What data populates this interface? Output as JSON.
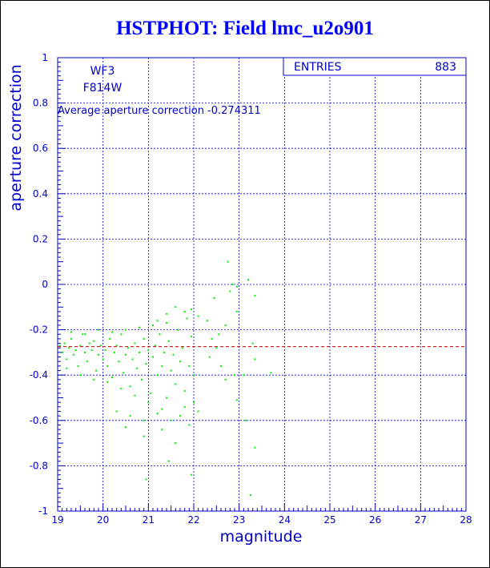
{
  "chart_data": {
    "type": "scatter",
    "title": "HSTPHOT: Field lmc_u2o901",
    "xlabel": "magnitude",
    "ylabel": "aperture correction",
    "xlim": [
      19,
      28
    ],
    "ylim": [
      -1,
      1
    ],
    "xticks": [
      "19",
      "20",
      "21",
      "22",
      "23",
      "24",
      "25",
      "26",
      "27",
      "28"
    ],
    "yticks": [
      "-1",
      "-0.8",
      "-0.6",
      "-0.4",
      "-0.2",
      "0",
      "0.2",
      "0.4",
      "0.6",
      "0.8",
      "1"
    ],
    "grid": true,
    "stats_box": {
      "label": "ENTRIES",
      "value": "883"
    },
    "annotations": {
      "camera": "WF3",
      "filter": "F814W",
      "average_text": "Average aperture correction -0.274311"
    },
    "average_line": {
      "y": -0.274311,
      "color": "#cc0000"
    },
    "point_color": "#00ee00",
    "axis_color": "#0000cc",
    "series": [
      {
        "points": [
          [
            19.05,
            -0.27
          ],
          [
            19.1,
            -0.3
          ],
          [
            19.15,
            -0.26
          ],
          [
            19.2,
            -0.33
          ],
          [
            19.25,
            -0.28
          ],
          [
            19.3,
            -0.24
          ],
          [
            19.35,
            -0.31
          ],
          [
            19.4,
            -0.29
          ],
          [
            19.45,
            -0.36
          ],
          [
            19.5,
            -0.27
          ],
          [
            19.55,
            -0.22
          ],
          [
            19.6,
            -0.3
          ],
          [
            19.65,
            -0.34
          ],
          [
            19.7,
            -0.26
          ],
          [
            19.75,
            -0.29
          ],
          [
            19.8,
            -0.25
          ],
          [
            19.85,
            -0.38
          ],
          [
            19.9,
            -0.31
          ],
          [
            19.95,
            -0.27
          ],
          [
            20.0,
            -0.33
          ],
          [
            20.05,
            -0.29
          ],
          [
            20.1,
            -0.36
          ],
          [
            20.15,
            -0.24
          ],
          [
            20.2,
            -0.41
          ],
          [
            20.25,
            -0.3
          ],
          [
            20.3,
            -0.27
          ],
          [
            20.35,
            -0.34
          ],
          [
            20.4,
            -0.22
          ],
          [
            20.45,
            -0.39
          ],
          [
            20.5,
            -0.31
          ],
          [
            20.55,
            -0.28
          ],
          [
            20.6,
            -0.45
          ],
          [
            20.65,
            -0.33
          ],
          [
            20.7,
            -0.26
          ],
          [
            20.75,
            -0.37
          ],
          [
            20.8,
            -0.3
          ],
          [
            20.85,
            -0.42
          ],
          [
            20.9,
            -0.24
          ],
          [
            20.95,
            -0.35
          ],
          [
            21.0,
            -0.29
          ],
          [
            21.05,
            -0.48
          ],
          [
            21.1,
            -0.32
          ],
          [
            21.15,
            -0.27
          ],
          [
            21.2,
            -0.4
          ],
          [
            21.25,
            -0.22
          ],
          [
            21.3,
            -0.36
          ],
          [
            21.35,
            -0.3
          ],
          [
            21.4,
            -0.5
          ],
          [
            21.45,
            -0.25
          ],
          [
            21.5,
            -0.38
          ],
          [
            21.55,
            -0.31
          ],
          [
            21.6,
            -0.44
          ],
          [
            21.65,
            -0.2
          ],
          [
            21.7,
            -0.34
          ],
          [
            21.75,
            -0.28
          ],
          [
            21.8,
            -0.47
          ],
          [
            21.85,
            -0.15
          ],
          [
            21.9,
            -0.36
          ],
          [
            21.95,
            -0.23
          ],
          [
            22.0,
            -0.4
          ],
          [
            19.3,
            -0.21
          ],
          [
            19.6,
            -0.22
          ],
          [
            19.9,
            -0.2
          ],
          [
            20.2,
            -0.21
          ],
          [
            20.5,
            -0.2
          ],
          [
            20.8,
            -0.19
          ],
          [
            21.1,
            -0.18
          ],
          [
            21.4,
            -0.17
          ],
          [
            19.2,
            -0.37
          ],
          [
            19.5,
            -0.4
          ],
          [
            19.8,
            -0.42
          ],
          [
            20.1,
            -0.43
          ],
          [
            20.4,
            -0.46
          ],
          [
            20.7,
            -0.49
          ],
          [
            21.0,
            -0.52
          ],
          [
            21.3,
            -0.55
          ],
          [
            20.3,
            -0.56
          ],
          [
            20.6,
            -0.58
          ],
          [
            20.9,
            -0.6
          ],
          [
            21.2,
            -0.57
          ],
          [
            21.5,
            -0.6
          ],
          [
            21.8,
            -0.54
          ],
          [
            22.0,
            -0.52
          ],
          [
            20.5,
            -0.63
          ],
          [
            20.9,
            -0.67
          ],
          [
            21.3,
            -0.64
          ],
          [
            21.6,
            -0.7
          ],
          [
            21.9,
            -0.62
          ],
          [
            22.1,
            -0.56
          ],
          [
            21.7,
            -0.58
          ],
          [
            21.45,
            -0.78
          ],
          [
            21.95,
            -0.84
          ],
          [
            20.95,
            -0.86
          ],
          [
            21.6,
            -0.1
          ],
          [
            21.8,
            -0.12
          ],
          [
            21.95,
            -0.11
          ],
          [
            22.1,
            -0.14
          ],
          [
            21.4,
            -0.13
          ],
          [
            21.2,
            -0.16
          ],
          [
            22.3,
            -0.16
          ],
          [
            22.45,
            -0.06
          ],
          [
            22.55,
            -0.22
          ],
          [
            22.7,
            -0.18
          ],
          [
            22.8,
            -0.03
          ],
          [
            22.95,
            -0.12
          ],
          [
            22.75,
            0.1
          ],
          [
            22.85,
            0.0
          ],
          [
            22.95,
            -0.01
          ],
          [
            23.2,
            0.02
          ],
          [
            23.35,
            -0.05
          ],
          [
            22.7,
            -0.42
          ],
          [
            22.9,
            -0.4
          ],
          [
            23.1,
            -0.4
          ],
          [
            23.3,
            -0.26
          ],
          [
            23.35,
            -0.33
          ],
          [
            22.95,
            -0.51
          ],
          [
            23.15,
            -0.6
          ],
          [
            23.25,
            -0.93
          ],
          [
            23.35,
            -0.72
          ],
          [
            23.7,
            -0.39
          ],
          [
            22.35,
            -0.32
          ],
          [
            22.5,
            -0.28
          ],
          [
            22.6,
            -0.36
          ],
          [
            22.4,
            -0.24
          ]
        ]
      }
    ]
  }
}
